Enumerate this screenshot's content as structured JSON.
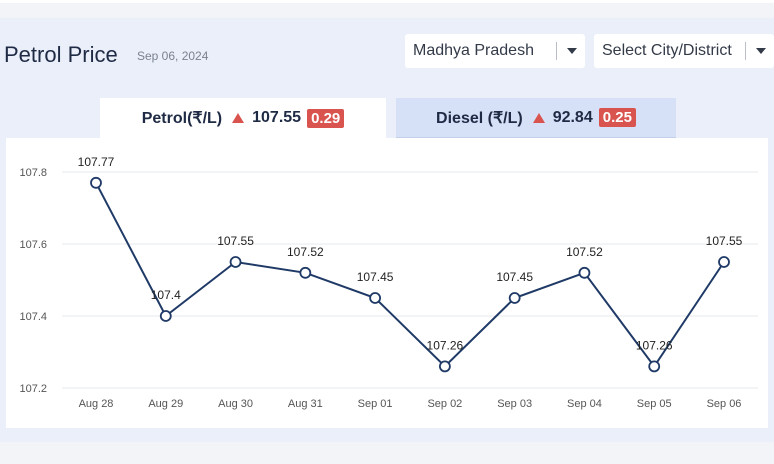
{
  "header": {
    "title": "Petrol Price",
    "date": "Sep 06, 2024",
    "state_select": "Madhya Pradesh",
    "city_select": "Select City/District"
  },
  "tabs": [
    {
      "label": "Petrol(₹/L)",
      "price": "107.55",
      "change": "0.29"
    },
    {
      "label": "Diesel (₹/L)",
      "price": "92.84",
      "change": "0.25"
    }
  ],
  "colors": {
    "line": "#1f3a66",
    "badge": "#d9534f",
    "grid": "#e6e8ec"
  },
  "chart_data": {
    "type": "line",
    "categories": [
      "Aug 28",
      "Aug 29",
      "Aug 30",
      "Aug 31",
      "Sep 01",
      "Sep 02",
      "Sep 03",
      "Sep 04",
      "Sep 05",
      "Sep 06"
    ],
    "values": [
      107.77,
      107.4,
      107.55,
      107.52,
      107.45,
      107.26,
      107.45,
      107.52,
      107.26,
      107.55
    ],
    "data_labels": [
      "107.77",
      "107.4",
      "107.55",
      "107.52",
      "107.45",
      "107.26",
      "107.45",
      "107.52",
      "107.26",
      "107.55"
    ],
    "yticks": [
      "107.2",
      "107.4",
      "107.6",
      "107.8"
    ],
    "ylim": [
      107.2,
      107.8
    ],
    "grid": true
  }
}
